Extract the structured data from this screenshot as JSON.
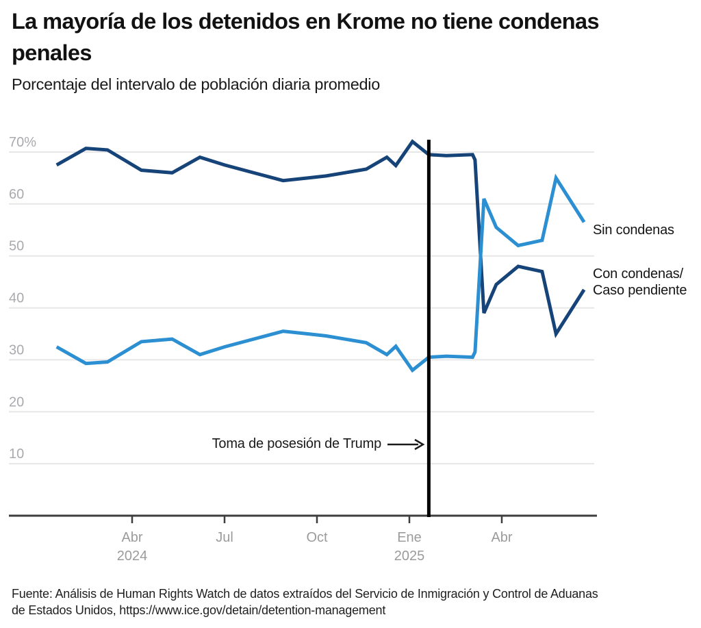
{
  "chart_data": {
    "type": "line",
    "title": "La mayoría de los detenidos en Krome no tiene condenas penales",
    "subtitle": "Porcentaje del intervalo de población diaria promedio",
    "source_line1": "Fuente: Análisis de Human Rights Watch de datos extraídos del Servicio de Inmigración y Control de Aduanas",
    "source_line2": "de Estados Unidos, https://www.ice.gov/detain/detention-management",
    "ylim": [
      0,
      72.5
    ],
    "grid": true,
    "legend_position": "inline-right",
    "colors": {
      "sin_condenas": "#2B8FD1",
      "con_condenas": "#164479",
      "event_line": "#000000",
      "axis": "#3D3D3D",
      "grid": "#E7E7E7",
      "x_tick_text": "#9B9B9B",
      "y_tick_text": "#A9AAAE",
      "annotation_text": "#1A1A1A"
    },
    "y_axis": {
      "ticks": [
        {
          "v": 70,
          "label": "70%"
        },
        {
          "v": 60,
          "label": "60"
        },
        {
          "v": 50,
          "label": "50"
        },
        {
          "v": 40,
          "label": "40"
        },
        {
          "v": 30,
          "label": "30"
        },
        {
          "v": 20,
          "label": "20"
        },
        {
          "v": 10,
          "label": "10"
        }
      ]
    },
    "x_axis": {
      "t_unit": "months since 2024-01-01",
      "ticks": [
        {
          "t": 3,
          "label": "Abr",
          "year": "2024"
        },
        {
          "t": 6,
          "label": "Jul"
        },
        {
          "t": 9,
          "label": "Oct"
        },
        {
          "t": 12,
          "label": "Ene",
          "year": "2025"
        },
        {
          "t": 15,
          "label": "Abr"
        }
      ]
    },
    "annotation": {
      "label": "Toma de posesión de Trump",
      "t": 12.63
    },
    "right_labels": {
      "sin": "Sin condenas",
      "con_line1": "Con condenas/",
      "con_line2": "Caso pendiente"
    },
    "series": [
      {
        "id": "con-condenas",
        "name": "Con condenas/Caso pendiente",
        "color": "#164479",
        "points": [
          [
            "2024-01-17",
            0.55,
            67.5
          ],
          [
            "2024-02-15",
            1.5,
            70.7
          ],
          [
            "2024-03-06",
            2.2,
            70.4
          ],
          [
            "2024-04-09",
            3.3,
            66.5
          ],
          [
            "2024-05-09",
            4.3,
            66.0
          ],
          [
            "2024-06-06",
            5.2,
            69.0
          ],
          [
            "2024-07-01",
            6.0,
            67.5
          ],
          [
            "2024-08-27",
            7.9,
            64.5
          ],
          [
            "2024-09-21",
            8.7,
            65.0
          ],
          [
            "2024-10-09",
            9.3,
            65.4
          ],
          [
            "2024-11-18",
            10.6,
            66.7
          ],
          [
            "2024-12-08",
            11.27,
            69.0
          ],
          [
            "2024-12-17",
            11.56,
            67.4
          ],
          [
            "2025-01-03",
            12.1,
            72.0
          ],
          [
            "2025-01-19",
            12.63,
            69.5
          ],
          [
            "2025-02-06",
            13.2,
            69.3
          ],
          [
            "2025-03-02",
            14.05,
            69.5
          ],
          [
            "2025-03-04",
            14.13,
            68.5
          ],
          [
            "2025-03-13",
            14.42,
            39.0
          ],
          [
            "2025-03-25",
            14.82,
            44.5
          ],
          [
            "2025-04-16",
            15.53,
            48.0
          ],
          [
            "2025-05-09",
            16.31,
            47.0
          ],
          [
            "2025-05-23",
            16.76,
            35.0
          ],
          [
            "2025-06-20",
            17.67,
            43.5
          ]
        ]
      },
      {
        "id": "sin-condenas",
        "name": "Sin condenas",
        "color": "#2B8FD1",
        "points": [
          [
            "2024-01-17",
            0.55,
            32.5
          ],
          [
            "2024-02-15",
            1.5,
            29.3
          ],
          [
            "2024-03-06",
            2.2,
            29.6
          ],
          [
            "2024-04-09",
            3.3,
            33.5
          ],
          [
            "2024-05-09",
            4.3,
            34.0
          ],
          [
            "2024-06-06",
            5.2,
            31.0
          ],
          [
            "2024-07-01",
            6.0,
            32.5
          ],
          [
            "2024-08-27",
            7.9,
            35.5
          ],
          [
            "2024-09-21",
            8.7,
            35.0
          ],
          [
            "2024-10-09",
            9.3,
            34.6
          ],
          [
            "2024-11-18",
            10.6,
            33.3
          ],
          [
            "2024-12-08",
            11.27,
            31.0
          ],
          [
            "2024-12-17",
            11.56,
            32.6
          ],
          [
            "2025-01-03",
            12.1,
            28.0
          ],
          [
            "2025-01-19",
            12.63,
            30.5
          ],
          [
            "2025-02-06",
            13.2,
            30.7
          ],
          [
            "2025-03-02",
            14.05,
            30.5
          ],
          [
            "2025-03-04",
            14.13,
            31.5
          ],
          [
            "2025-03-13",
            14.42,
            61.0
          ],
          [
            "2025-03-25",
            14.82,
            55.5
          ],
          [
            "2025-04-16",
            15.53,
            52.0
          ],
          [
            "2025-05-09",
            16.31,
            53.0
          ],
          [
            "2025-05-23",
            16.76,
            65.0
          ],
          [
            "2025-06-20",
            17.67,
            56.5
          ]
        ]
      }
    ]
  }
}
